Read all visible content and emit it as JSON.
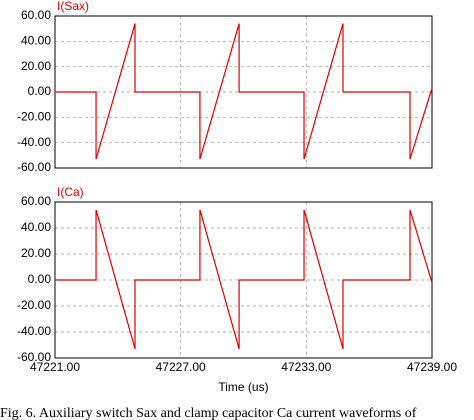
{
  "chart_data": [
    {
      "type": "line",
      "title": "I(Sax)",
      "x": [
        47221,
        47222.96,
        47222.96,
        47224.82,
        47224.82,
        47227.92,
        47227.92,
        47229.79,
        47229.79,
        47232.89,
        47232.89,
        47234.75,
        47234.75,
        47237.95,
        47237.95,
        47239
      ],
      "series": [
        {
          "color": "#e00000",
          "values": [
            0,
            0,
            -53,
            54,
            0,
            0,
            -53,
            54,
            0,
            0,
            -53,
            54,
            0,
            0,
            -53,
            3
          ]
        }
      ],
      "xlim": [
        47221,
        47239
      ],
      "ylim": [
        -60,
        60
      ],
      "yticks": [
        {
          "value": 60,
          "label": "60.00"
        },
        {
          "value": 40,
          "label": "40.00"
        },
        {
          "value": 20,
          "label": "20.00"
        },
        {
          "value": 0,
          "label": "0.00"
        },
        {
          "value": -20,
          "label": "-20.00"
        },
        {
          "value": -40,
          "label": "-40.00"
        },
        {
          "value": -60,
          "label": "-60.00"
        }
      ],
      "grid": true
    },
    {
      "type": "line",
      "title": "I(Ca)",
      "x": [
        47221,
        47222.96,
        47222.96,
        47224.82,
        47224.82,
        47227.92,
        47227.92,
        47229.79,
        47229.79,
        47232.89,
        47232.89,
        47234.75,
        47234.75,
        47237.95,
        47237.95,
        47239
      ],
      "series": [
        {
          "color": "#e00000",
          "values": [
            0,
            0,
            54,
            -53,
            0,
            0,
            54,
            -53,
            0,
            0,
            54,
            -53,
            0,
            0,
            54,
            -2
          ]
        }
      ],
      "xlim": [
        47221,
        47239
      ],
      "ylim": [
        -60,
        60
      ],
      "xticks": [
        {
          "value": 47221,
          "label": "47221.00"
        },
        {
          "value": 47227,
          "label": "47227.00"
        },
        {
          "value": 47233,
          "label": "47233.00"
        },
        {
          "value": 47239,
          "label": "47239.00"
        }
      ],
      "yticks": [
        {
          "value": 60,
          "label": "60.00"
        },
        {
          "value": 40,
          "label": "40.00"
        },
        {
          "value": 20,
          "label": "20.00"
        },
        {
          "value": 0,
          "label": "0.00"
        },
        {
          "value": -20,
          "label": "-20.00"
        },
        {
          "value": -40,
          "label": "-40.00"
        },
        {
          "value": -60,
          "label": "-60.00"
        }
      ],
      "xlabel": "Time  (us)",
      "grid": true
    }
  ],
  "caption": "Fig. 6. Auxiliary switch Sax and clamp capacitor Ca current waveforms of"
}
